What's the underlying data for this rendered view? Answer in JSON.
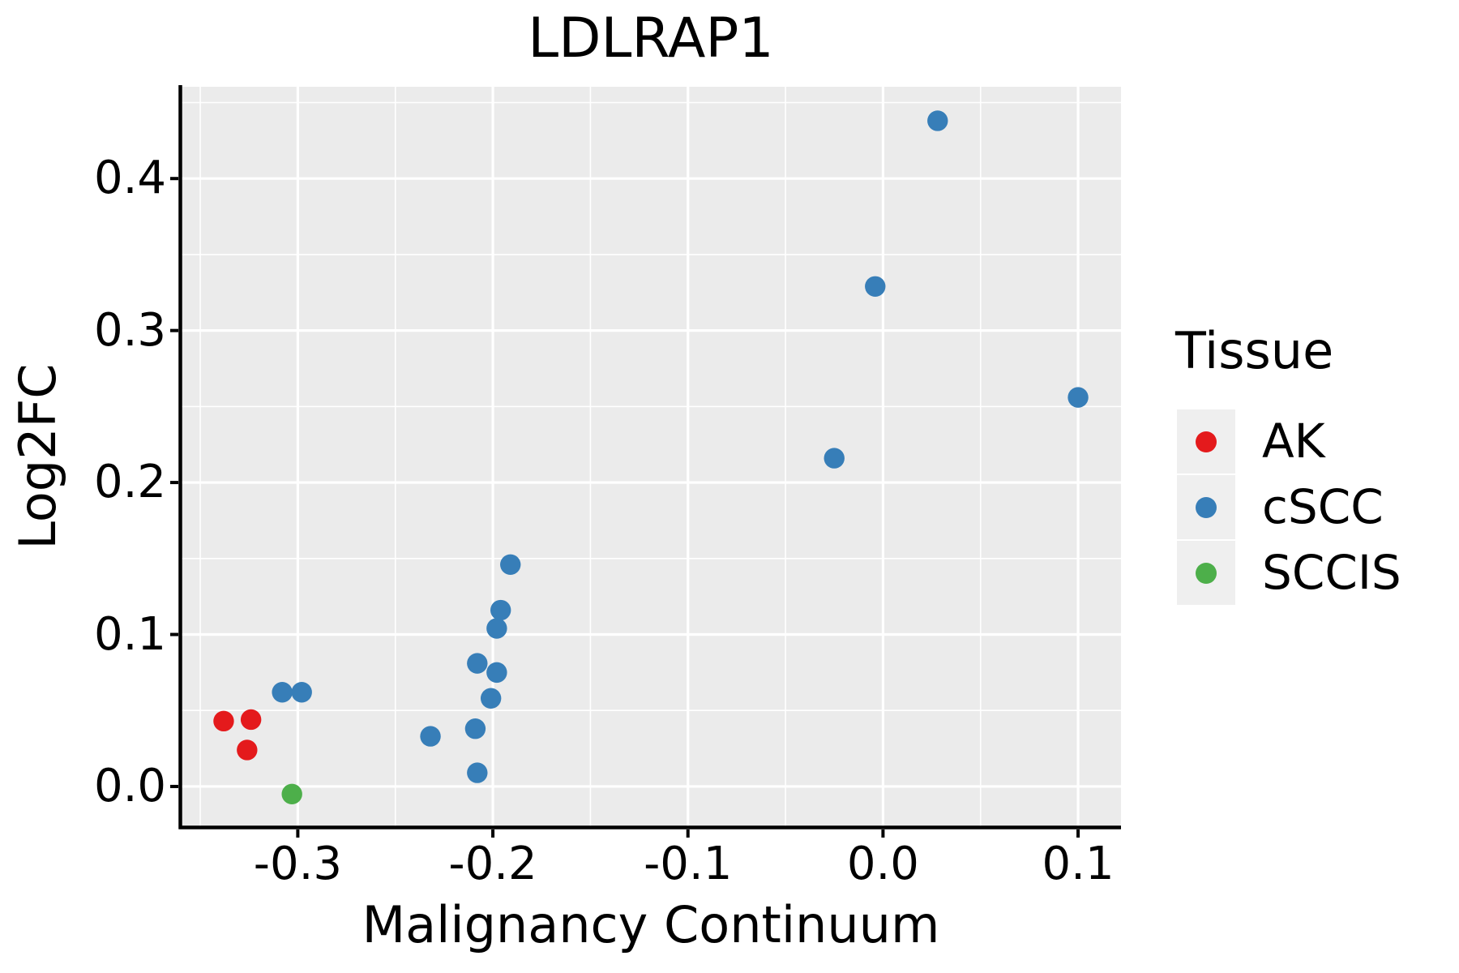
{
  "chart_data": {
    "type": "scatter",
    "title": "LDLRAP1",
    "xlabel": "Malignancy Continuum",
    "ylabel": "Log2FC",
    "xlim": [
      -0.36,
      0.122
    ],
    "ylim": [
      -0.0267,
      0.4604
    ],
    "x_ticks": [
      -0.3,
      -0.2,
      -0.1,
      0.0,
      0.1
    ],
    "x_tick_labels": [
      "-0.3",
      "-0.2",
      "-0.1",
      "0.0",
      "0.1"
    ],
    "y_ticks": [
      0.0,
      0.1,
      0.2,
      0.3,
      0.4
    ],
    "y_tick_labels": [
      "0.0",
      "0.1",
      "0.2",
      "0.3",
      "0.4"
    ],
    "x_minor": [
      -0.35,
      -0.25,
      -0.15,
      -0.05,
      0.05
    ],
    "y_minor": [
      0.05,
      0.15,
      0.25,
      0.35,
      0.45
    ],
    "grid": "on",
    "panel_background": "#EBEBEB",
    "grid_color": "#FFFFFF",
    "legend_key_background": "#EFEFEF",
    "legend": {
      "title": "Tissue",
      "position": "right"
    },
    "series": [
      {
        "name": "AK",
        "color": "#E41A1C",
        "points": [
          [
            -0.338,
            0.043
          ],
          [
            -0.324,
            0.044
          ],
          [
            -0.326,
            0.024
          ]
        ]
      },
      {
        "name": "cSCC",
        "color": "#377EB8",
        "points": [
          [
            -0.308,
            0.062
          ],
          [
            -0.298,
            0.062
          ],
          [
            -0.232,
            0.033
          ],
          [
            -0.209,
            0.038
          ],
          [
            -0.208,
            0.081
          ],
          [
            -0.208,
            0.009
          ],
          [
            -0.201,
            0.058
          ],
          [
            -0.198,
            0.104
          ],
          [
            -0.198,
            0.075
          ],
          [
            -0.196,
            0.116
          ],
          [
            -0.191,
            0.146
          ],
          [
            -0.025,
            0.216
          ],
          [
            -0.004,
            0.329
          ],
          [
            0.028,
            0.438
          ],
          [
            0.1,
            0.256
          ]
        ]
      },
      {
        "name": "SCCIS",
        "color": "#4DAF4A",
        "points": [
          [
            -0.303,
            -0.005
          ]
        ]
      }
    ]
  }
}
